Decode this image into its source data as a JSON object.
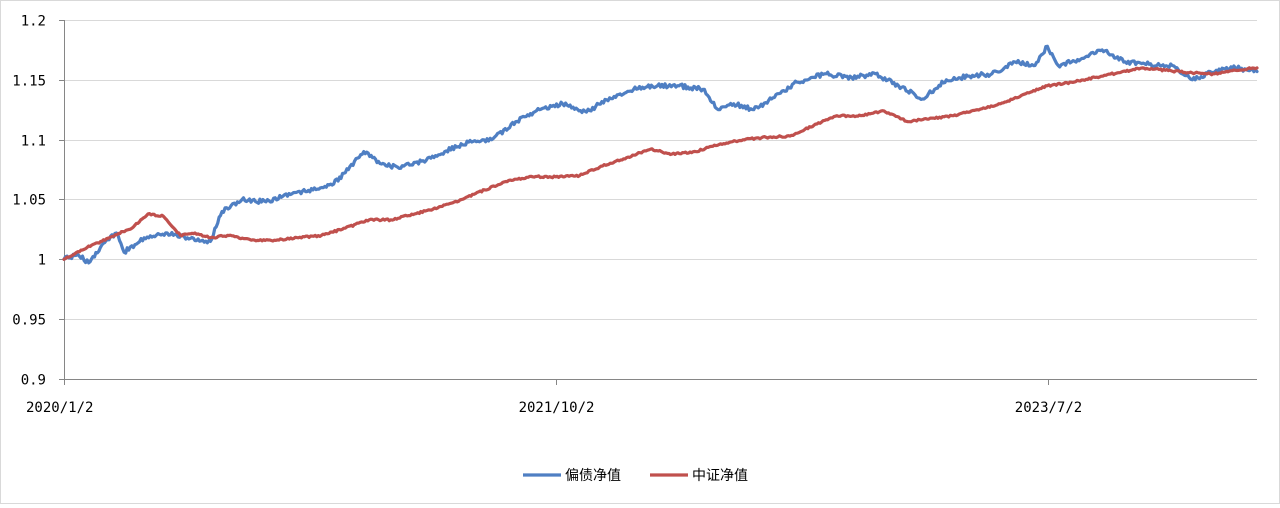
{
  "chart_data": {
    "type": "line",
    "title": "",
    "xlabel": "",
    "ylabel": "",
    "ylim": [
      0.9,
      1.2
    ],
    "yticks": [
      "1.2",
      "1.15",
      "1.1",
      "1.05",
      "1",
      "0.95",
      "0.9"
    ],
    "ytick_values": [
      1.2,
      1.15,
      1.1,
      1.05,
      1.0,
      0.95,
      0.9
    ],
    "xlim": [
      "2020-01-02",
      "2024-03-29"
    ],
    "xtick_labels": [
      "2020/1/2",
      "2021/10/2",
      "2023/7/2"
    ],
    "xtick_dates": [
      "2020-01-02",
      "2021-10-02",
      "2023-07-02"
    ],
    "grid": "horizontal",
    "legend_position": "bottom",
    "series": [
      {
        "name": "偏债净值",
        "color": "#4f7fc3",
        "points": [
          [
            "2020-01-02",
            1.0
          ],
          [
            "2020-01-20",
            1.004
          ],
          [
            "2020-02-03",
            0.997
          ],
          [
            "2020-02-20",
            1.012
          ],
          [
            "2020-03-10",
            1.022
          ],
          [
            "2020-03-20",
            1.006
          ],
          [
            "2020-04-15",
            1.018
          ],
          [
            "2020-05-15",
            1.022
          ],
          [
            "2020-06-10",
            1.018
          ],
          [
            "2020-07-10",
            1.015
          ],
          [
            "2020-07-25",
            1.04
          ],
          [
            "2020-08-20",
            1.05
          ],
          [
            "2020-09-20",
            1.048
          ],
          [
            "2020-10-20",
            1.055
          ],
          [
            "2020-11-20",
            1.058
          ],
          [
            "2020-12-15",
            1.062
          ],
          [
            "2021-01-05",
            1.075
          ],
          [
            "2021-01-25",
            1.09
          ],
          [
            "2021-02-15",
            1.08
          ],
          [
            "2021-03-10",
            1.077
          ],
          [
            "2021-04-10",
            1.082
          ],
          [
            "2021-05-10",
            1.09
          ],
          [
            "2021-06-10",
            1.098
          ],
          [
            "2021-07-10",
            1.1
          ],
          [
            "2021-08-10",
            1.115
          ],
          [
            "2021-09-10",
            1.125
          ],
          [
            "2021-10-10",
            1.13
          ],
          [
            "2021-11-10",
            1.123
          ],
          [
            "2021-12-10",
            1.135
          ],
          [
            "2022-01-10",
            1.142
          ],
          [
            "2022-02-10",
            1.145
          ],
          [
            "2022-03-10",
            1.145
          ],
          [
            "2022-04-10",
            1.142
          ],
          [
            "2022-04-30",
            1.125
          ],
          [
            "2022-05-20",
            1.13
          ],
          [
            "2022-06-15",
            1.125
          ],
          [
            "2022-07-10",
            1.135
          ],
          [
            "2022-08-10",
            1.148
          ],
          [
            "2022-09-15",
            1.155
          ],
          [
            "2022-10-20",
            1.152
          ],
          [
            "2022-11-20",
            1.155
          ],
          [
            "2022-12-20",
            1.145
          ],
          [
            "2023-01-20",
            1.134
          ],
          [
            "2023-02-20",
            1.15
          ],
          [
            "2023-03-20",
            1.153
          ],
          [
            "2023-04-20",
            1.155
          ],
          [
            "2023-05-20",
            1.165
          ],
          [
            "2023-06-15",
            1.162
          ],
          [
            "2023-07-01",
            1.178
          ],
          [
            "2023-07-15",
            1.162
          ],
          [
            "2023-08-15",
            1.168
          ],
          [
            "2023-09-10",
            1.175
          ],
          [
            "2023-10-10",
            1.165
          ],
          [
            "2023-11-10",
            1.163
          ],
          [
            "2023-12-10",
            1.162
          ],
          [
            "2024-01-05",
            1.15
          ],
          [
            "2024-02-05",
            1.158
          ],
          [
            "2024-03-01",
            1.16
          ],
          [
            "2024-03-29",
            1.157
          ]
        ]
      },
      {
        "name": "中证净值",
        "color": "#c0504d",
        "points": [
          [
            "2020-01-02",
            1.0
          ],
          [
            "2020-02-01",
            1.01
          ],
          [
            "2020-03-01",
            1.018
          ],
          [
            "2020-04-01",
            1.027
          ],
          [
            "2020-04-20",
            1.038
          ],
          [
            "2020-05-10",
            1.036
          ],
          [
            "2020-06-01",
            1.02
          ],
          [
            "2020-06-20",
            1.022
          ],
          [
            "2020-07-10",
            1.018
          ],
          [
            "2020-08-01",
            1.02
          ],
          [
            "2020-09-01",
            1.016
          ],
          [
            "2020-10-01",
            1.016
          ],
          [
            "2020-11-01",
            1.018
          ],
          [
            "2020-12-01",
            1.02
          ],
          [
            "2021-01-01",
            1.026
          ],
          [
            "2021-02-01",
            1.033
          ],
          [
            "2021-03-01",
            1.033
          ],
          [
            "2021-04-01",
            1.038
          ],
          [
            "2021-05-01",
            1.043
          ],
          [
            "2021-06-01",
            1.05
          ],
          [
            "2021-07-01",
            1.058
          ],
          [
            "2021-08-01",
            1.066
          ],
          [
            "2021-09-01",
            1.069
          ],
          [
            "2021-10-01",
            1.069
          ],
          [
            "2021-11-01",
            1.07
          ],
          [
            "2021-12-01",
            1.078
          ],
          [
            "2022-01-01",
            1.085
          ],
          [
            "2022-02-01",
            1.092
          ],
          [
            "2022-03-01",
            1.088
          ],
          [
            "2022-04-01",
            1.09
          ],
          [
            "2022-05-01",
            1.096
          ],
          [
            "2022-06-01",
            1.1
          ],
          [
            "2022-07-01",
            1.102
          ],
          [
            "2022-08-01",
            1.103
          ],
          [
            "2022-09-01",
            1.112
          ],
          [
            "2022-10-01",
            1.12
          ],
          [
            "2022-11-01",
            1.12
          ],
          [
            "2022-12-01",
            1.124
          ],
          [
            "2023-01-01",
            1.115
          ],
          [
            "2023-02-01",
            1.118
          ],
          [
            "2023-03-01",
            1.12
          ],
          [
            "2023-04-01",
            1.125
          ],
          [
            "2023-05-01",
            1.13
          ],
          [
            "2023-06-01",
            1.138
          ],
          [
            "2023-07-01",
            1.145
          ],
          [
            "2023-08-01",
            1.148
          ],
          [
            "2023-09-01",
            1.152
          ],
          [
            "2023-10-01",
            1.156
          ],
          [
            "2023-11-01",
            1.16
          ],
          [
            "2023-12-01",
            1.158
          ],
          [
            "2024-01-01",
            1.156
          ],
          [
            "2024-02-01",
            1.155
          ],
          [
            "2024-03-01",
            1.158
          ],
          [
            "2024-03-29",
            1.16
          ]
        ]
      }
    ]
  }
}
